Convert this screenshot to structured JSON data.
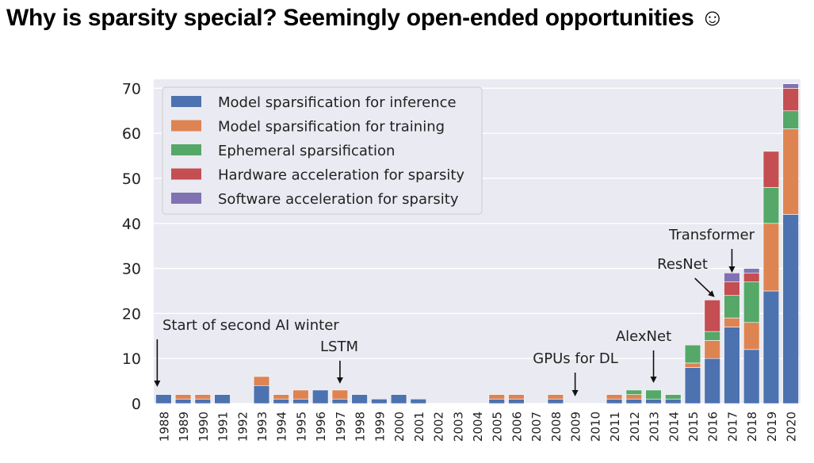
{
  "slide": {
    "title": "Why is sparsity special? Seemingly open-ended opportunities ☺"
  },
  "chart_data": {
    "type": "bar",
    "stacked": true,
    "categories": [
      "1988",
      "1989",
      "1990",
      "1991",
      "1992",
      "1993",
      "1994",
      "1995",
      "1996",
      "1997",
      "1998",
      "1999",
      "2000",
      "2001",
      "2002",
      "2003",
      "2004",
      "2005",
      "2006",
      "2007",
      "2008",
      "2009",
      "2010",
      "2011",
      "2012",
      "2013",
      "2014",
      "2015",
      "2016",
      "2017",
      "2018",
      "2019",
      "2020"
    ],
    "series": [
      {
        "name": "Model sparsification for inference",
        "color": "#4c72b0",
        "values": [
          2,
          1,
          1,
          2,
          0,
          4,
          1,
          1,
          3,
          1,
          2,
          1,
          2,
          1,
          0,
          0,
          0,
          1,
          1,
          0,
          1,
          0,
          0,
          1,
          1,
          1,
          1,
          8,
          10,
          17,
          12,
          25,
          42
        ]
      },
      {
        "name": "Model sparsification for training",
        "color": "#dd8452",
        "values": [
          0,
          1,
          1,
          0,
          0,
          2,
          1,
          2,
          0,
          2,
          0,
          0,
          0,
          0,
          0,
          0,
          0,
          1,
          1,
          0,
          1,
          0,
          0,
          1,
          1,
          0,
          0,
          1,
          4,
          2,
          6,
          15,
          19
        ]
      },
      {
        "name": "Ephemeral sparsification",
        "color": "#55a868",
        "values": [
          0,
          0,
          0,
          0,
          0,
          0,
          0,
          0,
          0,
          0,
          0,
          0,
          0,
          0,
          0,
          0,
          0,
          0,
          0,
          0,
          0,
          0,
          0,
          0,
          1,
          2,
          1,
          4,
          2,
          5,
          9,
          8,
          4
        ]
      },
      {
        "name": "Hardware acceleration for sparsity",
        "color": "#c44e52",
        "values": [
          0,
          0,
          0,
          0,
          0,
          0,
          0,
          0,
          0,
          0,
          0,
          0,
          0,
          0,
          0,
          0,
          0,
          0,
          0,
          0,
          0,
          0,
          0,
          0,
          0,
          0,
          0,
          0,
          7,
          3,
          2,
          8,
          5
        ]
      },
      {
        "name": "Software acceleration for sparsity",
        "color": "#8172b3",
        "values": [
          0,
          0,
          0,
          0,
          0,
          0,
          0,
          0,
          0,
          0,
          0,
          0,
          0,
          0,
          0,
          0,
          0,
          0,
          0,
          0,
          0,
          0,
          0,
          0,
          0,
          0,
          0,
          0,
          0,
          2,
          1,
          0,
          1
        ]
      }
    ],
    "ylim": [
      0,
      72
    ],
    "yticks": [
      0,
      10,
      20,
      30,
      40,
      50,
      60,
      70
    ],
    "grid": true,
    "legend_position": "top-left",
    "annotations": [
      {
        "text": "Start of second AI winter",
        "x": "1988",
        "y": 2,
        "arrow": true
      },
      {
        "text": "LSTM",
        "x": "1997",
        "y": 3,
        "arrow": true
      },
      {
        "text": "GPUs for DL",
        "x": "2009",
        "y": 0,
        "arrow": true
      },
      {
        "text": "AlexNet",
        "x": "2013",
        "y": 3,
        "arrow": true
      },
      {
        "text": "ResNet",
        "x": "2016",
        "y": 23,
        "arrow": true
      },
      {
        "text": "Transformer",
        "x": "2017",
        "y": 29,
        "arrow": true
      }
    ],
    "colors": {
      "plot_background": "#eaeaf2",
      "grid": "#ffffff"
    }
  }
}
